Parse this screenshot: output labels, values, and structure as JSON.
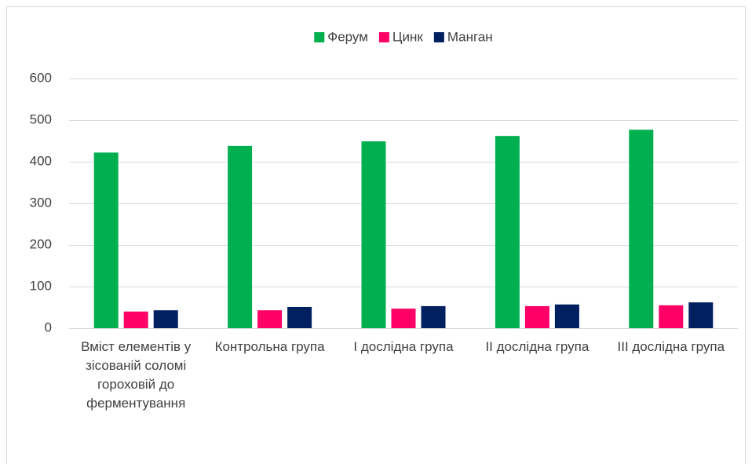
{
  "chart_data": {
    "type": "bar",
    "categories": [
      "Вміст елементів у зісованій соломі гороховій до ферментування",
      "Контрольна група",
      "І дослідна група",
      "ІІ дослідна група",
      "ІІІ дослідна група"
    ],
    "series": [
      {
        "name": "Ферум",
        "color": "#00b050",
        "values": [
          422,
          438,
          449,
          462,
          477
        ]
      },
      {
        "name": "Цинк",
        "color": "#ff0066",
        "values": [
          40,
          43,
          47,
          53,
          55
        ]
      },
      {
        "name": "Манган",
        "color": "#002060",
        "values": [
          43,
          51,
          53,
          57,
          62
        ]
      }
    ],
    "ylim": [
      0,
      600
    ],
    "yticks": [
      0,
      100,
      200,
      300,
      400,
      500,
      600
    ],
    "grid": true,
    "legend": "top"
  }
}
